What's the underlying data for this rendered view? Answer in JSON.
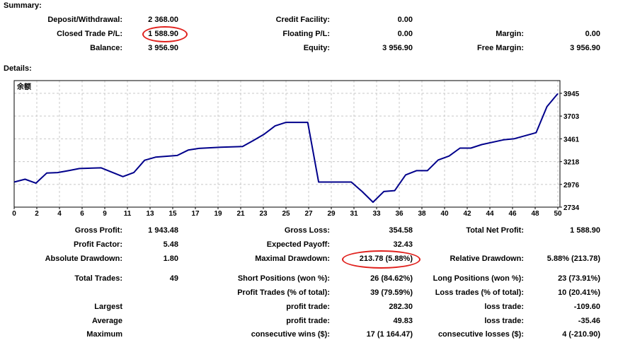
{
  "summary": {
    "heading": "Summary:",
    "rows": [
      [
        {
          "label": "Deposit/Withdrawal:",
          "value": "2 368.00"
        },
        {
          "label": "Credit Facility:",
          "value": "0.00"
        },
        {
          "label": "",
          "value": ""
        }
      ],
      [
        {
          "label": "Closed Trade P/L:",
          "value": "1 588.90",
          "highlight": true
        },
        {
          "label": "Floating P/L:",
          "value": "0.00"
        },
        {
          "label": "Margin:",
          "value": "0.00"
        }
      ],
      [
        {
          "label": "Balance:",
          "value": "3 956.90"
        },
        {
          "label": "Equity:",
          "value": "3 956.90"
        },
        {
          "label": "Free Margin:",
          "value": "3 956.90"
        }
      ]
    ]
  },
  "details": {
    "heading": "Details:",
    "rows": [
      [
        {
          "label": "Gross Profit:",
          "value": "1 943.48"
        },
        {
          "label": "Gross Loss:",
          "value": "354.58"
        },
        {
          "label": "Total Net Profit:",
          "value": "1 588.90"
        }
      ],
      [
        {
          "label": "Profit Factor:",
          "value": "5.48"
        },
        {
          "label": "Expected Payoff:",
          "value": "32.43"
        },
        {
          "label": "",
          "value": ""
        }
      ],
      [
        {
          "label": "Absolute Drawdown:",
          "value": "1.80"
        },
        {
          "label": "Maximal Drawdown:",
          "value": "213.78 (5.88%)",
          "highlight": true
        },
        {
          "label": "Relative Drawdown:",
          "value": "5.88% (213.78)"
        }
      ],
      [
        {
          "label": "Total Trades:",
          "value": "49"
        },
        {
          "label": "Short Positions (won %):",
          "value": "26 (84.62%)"
        },
        {
          "label": "Long Positions (won %):",
          "value": "23 (73.91%)"
        }
      ],
      [
        {
          "label": "",
          "value": ""
        },
        {
          "label": "Profit Trades (% of total):",
          "value": "39 (79.59%)"
        },
        {
          "label": "Loss trades (% of total):",
          "value": "10 (20.41%)"
        }
      ],
      [
        {
          "label": "Largest",
          "value": ""
        },
        {
          "label": "profit trade:",
          "value": "282.30"
        },
        {
          "label": "loss trade:",
          "value": "-109.60"
        }
      ],
      [
        {
          "label": "Average",
          "value": ""
        },
        {
          "label": "profit trade:",
          "value": "49.83"
        },
        {
          "label": "loss trade:",
          "value": "-35.46"
        }
      ],
      [
        {
          "label": "Maximum",
          "value": ""
        },
        {
          "label": "consecutive wins ($):",
          "value": "17 (1 164.47)"
        },
        {
          "label": "consecutive losses ($):",
          "value": "4 (-210.90)"
        }
      ]
    ]
  },
  "chart_data": {
    "type": "line",
    "title": "余额",
    "xlabel": "",
    "ylabel": "",
    "x_tick_labels": [
      "0",
      "2",
      "4",
      "6",
      "9",
      "11",
      "13",
      "15",
      "17",
      "19",
      "21",
      "23",
      "25",
      "27",
      "29",
      "31",
      "33",
      "36",
      "38",
      "40",
      "42",
      "44",
      "46",
      "48",
      "50"
    ],
    "y_ticks": [
      2734,
      2976,
      3218,
      3461,
      3703,
      3945
    ],
    "xlim": [
      0,
      50
    ],
    "ylim": [
      2734,
      3945
    ],
    "grid": true,
    "line_color": "#00008b",
    "series": [
      {
        "x": [
          0,
          1,
          2,
          3,
          4,
          5,
          6,
          8,
          10,
          11,
          12,
          13,
          15,
          16,
          17,
          19,
          21,
          22,
          23,
          24,
          25,
          27,
          28,
          31,
          32,
          33,
          34,
          35,
          36,
          37,
          38,
          39,
          40,
          41,
          42,
          43,
          45,
          46,
          48,
          49,
          50
        ],
        "y": [
          3001,
          3031,
          2989,
          3097,
          3102,
          3122,
          3145,
          3152,
          3059,
          3102,
          3233,
          3266,
          3284,
          3341,
          3359,
          3371,
          3379,
          3443,
          3511,
          3598,
          3636,
          3636,
          3001,
          3001,
          2900,
          2787,
          2900,
          2910,
          3077,
          3122,
          3122,
          3236,
          3278,
          3362,
          3362,
          3400,
          3450,
          3462,
          3526,
          3803,
          3942
        ]
      }
    ]
  }
}
